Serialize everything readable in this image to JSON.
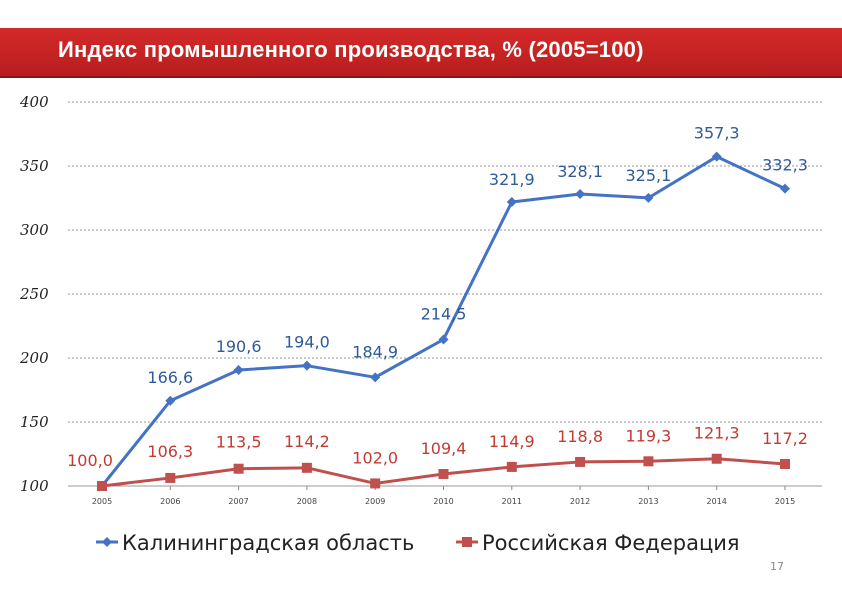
{
  "chart_data": {
    "type": "line",
    "title": "Индекс промышленного производства, % (2005=100)",
    "categories": [
      "2005",
      "2006",
      "2007",
      "2008",
      "2009",
      "2010",
      "2011",
      "2012",
      "2013",
      "2014",
      "2015"
    ],
    "series": [
      {
        "name": "Калининградская область",
        "color": "#4472c4",
        "marker": "diamond",
        "values": [
          100.0,
          166.6,
          190.6,
          194.0,
          184.9,
          214.5,
          321.9,
          328.1,
          325.1,
          357.3,
          332.3
        ],
        "labels": [
          "",
          "166,6",
          "190,6",
          "194,0",
          "184,9",
          "214,5",
          "321,9",
          "328,1",
          "325,1",
          "357,3",
          "332,3"
        ]
      },
      {
        "name": "Российская Федерация",
        "color": "#c0504d",
        "marker": "square",
        "values": [
          100.0,
          106.3,
          113.5,
          114.2,
          102.0,
          109.4,
          114.9,
          118.8,
          119.3,
          121.3,
          117.2
        ],
        "labels": [
          "100,0",
          "106,3",
          "113,5",
          "114,2",
          "102,0",
          "109,4",
          "114,9",
          "118,8",
          "119,3",
          "121,3",
          "117,2"
        ]
      }
    ],
    "ylim": [
      100,
      400
    ],
    "yticks": [
      "100",
      "150",
      "200",
      "250",
      "300",
      "350",
      "400"
    ],
    "grid": true,
    "legend_position": "bottom"
  },
  "page_number": "17"
}
